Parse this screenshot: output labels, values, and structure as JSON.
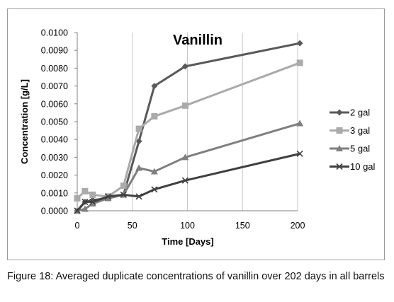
{
  "chart_data": {
    "type": "line",
    "title": "Vanillin",
    "xlabel": "Time [Days]",
    "ylabel": "Concentration [g/L]",
    "xlim": [
      0,
      200
    ],
    "ylim": [
      0,
      0.01
    ],
    "x_ticks": [
      0,
      50,
      100,
      150,
      200
    ],
    "y_ticks": [
      "0.0000",
      "0.0010",
      "0.0020",
      "0.0030",
      "0.0040",
      "0.0050",
      "0.0060",
      "0.0070",
      "0.0080",
      "0.0090",
      "0.0100"
    ],
    "grid": "vertical",
    "legend_position": "right",
    "series": [
      {
        "name": "2 gal",
        "marker": "diamond",
        "color": "#595959",
        "points": [
          [
            0,
            0
          ],
          [
            7,
            0.0005
          ],
          [
            14,
            0.0006
          ],
          [
            28,
            0.0007
          ],
          [
            42,
            0.0009
          ],
          [
            56,
            0.0039
          ],
          [
            70,
            0.007
          ],
          [
            98,
            0.0081
          ],
          [
            202,
            0.0094
          ]
        ]
      },
      {
        "name": "3 gal",
        "marker": "square",
        "color": "#aaaaaa",
        "points": [
          [
            0,
            0.0007
          ],
          [
            7,
            0.0011
          ],
          [
            14,
            0.0009
          ],
          [
            28,
            0.0008
          ],
          [
            42,
            0.0014
          ],
          [
            56,
            0.0046
          ],
          [
            70,
            0.0053
          ],
          [
            98,
            0.0059
          ],
          [
            202,
            0.0083
          ]
        ]
      },
      {
        "name": "5 gal",
        "marker": "triangle",
        "color": "#7f7f7f",
        "points": [
          [
            0,
            0
          ],
          [
            7,
            0.0001
          ],
          [
            14,
            0.0004
          ],
          [
            28,
            0.0007
          ],
          [
            42,
            0.0009
          ],
          [
            56,
            0.0024
          ],
          [
            70,
            0.0022
          ],
          [
            98,
            0.003
          ],
          [
            202,
            0.0049
          ]
        ]
      },
      {
        "name": "10 gal",
        "marker": "x",
        "color": "#404040",
        "points": [
          [
            0,
            0
          ],
          [
            7,
            0.0005
          ],
          [
            14,
            0.0005
          ],
          [
            28,
            0.0008
          ],
          [
            42,
            0.0009
          ],
          [
            56,
            0.0008
          ],
          [
            70,
            0.0012
          ],
          [
            98,
            0.0017
          ],
          [
            202,
            0.0032
          ]
        ]
      }
    ]
  },
  "caption": "Figure 18: Averaged duplicate concentrations of vanillin over 202 days in all barrels"
}
